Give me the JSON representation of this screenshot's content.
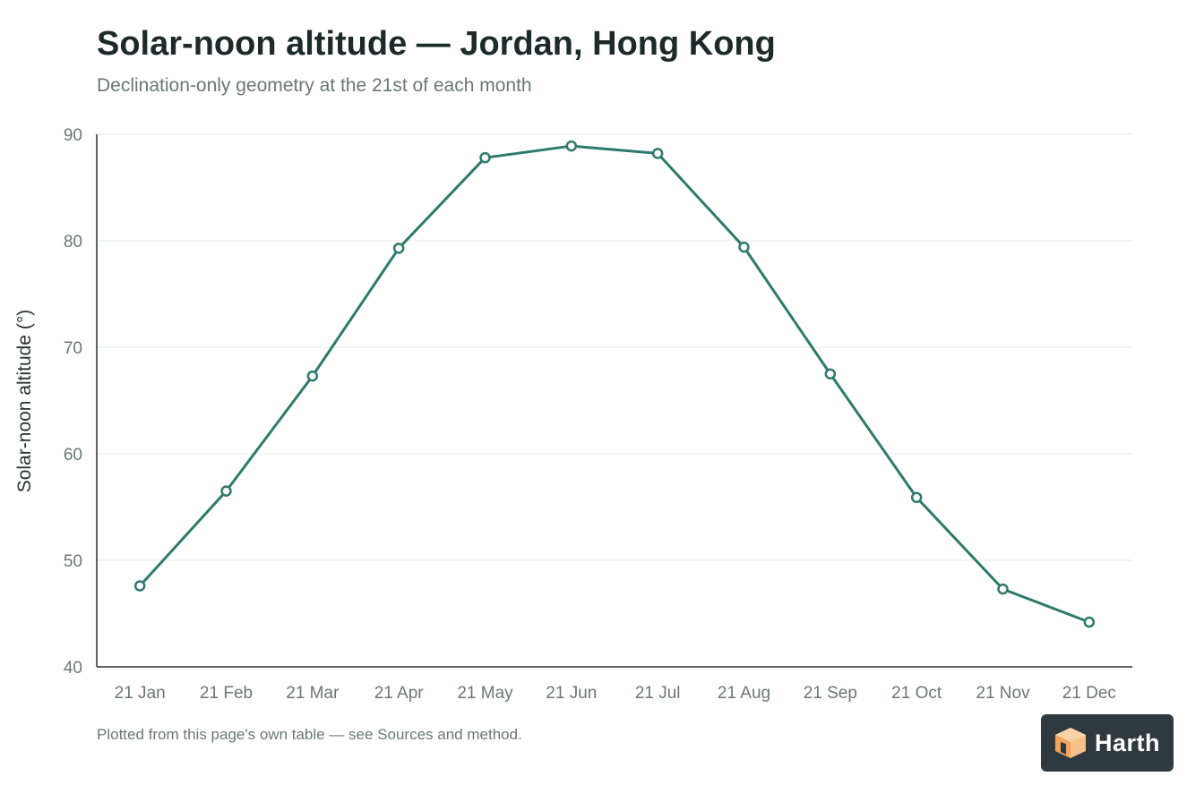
{
  "chart_data": {
    "type": "line",
    "title": "Solar-noon altitude — Jordan, Hong Kong",
    "subtitle": "Declination-only geometry at the 21st of each month",
    "xlabel": "",
    "ylabel": "Solar-noon altitude (°)",
    "categories": [
      "21 Jan",
      "21 Feb",
      "21 Mar",
      "21 Apr",
      "21 May",
      "21 Jun",
      "21 Jul",
      "21 Aug",
      "21 Sep",
      "21 Oct",
      "21 Nov",
      "21 Dec"
    ],
    "values": [
      47.6,
      56.5,
      67.3,
      79.3,
      87.8,
      88.9,
      88.2,
      79.4,
      67.5,
      55.9,
      47.3,
      44.2
    ],
    "ylim": [
      40,
      90
    ],
    "yticks": [
      40,
      50,
      60,
      70,
      80,
      90
    ],
    "grid": true,
    "legend": "none",
    "line_color": "#2e7a6e",
    "marker": "open-circle"
  },
  "footnote": "Plotted from this page's own table — see Sources and method.",
  "logo": {
    "text": "Harth",
    "icon": "cube-logo-icon",
    "background": "#2f3a40",
    "accent": "#f2a45c"
  }
}
